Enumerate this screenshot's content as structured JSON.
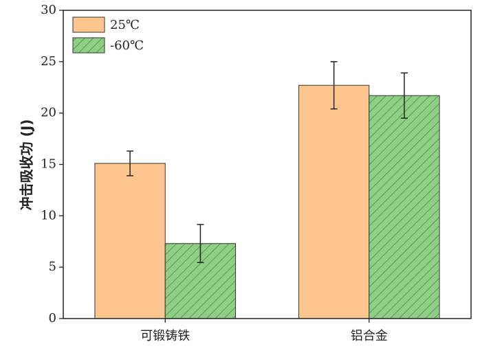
{
  "chart_data": {
    "type": "bar",
    "y_label": "冲击吸收功 (J)",
    "categories": [
      "可锻铸铁",
      "铝合金"
    ],
    "series": [
      {
        "name": "25℃",
        "color": "#fdc68e",
        "values": [
          15.1,
          22.7
        ],
        "errors": [
          1.2,
          2.3
        ]
      },
      {
        "name": "-60℃",
        "color": "#8fcf85",
        "hatch": true,
        "values": [
          7.3,
          21.7
        ],
        "errors": [
          1.85,
          2.2
        ]
      }
    ],
    "ylim": [
      0,
      30
    ],
    "yticks": [
      0,
      5,
      10,
      15,
      20,
      25,
      30
    ],
    "legend": "upper left"
  }
}
